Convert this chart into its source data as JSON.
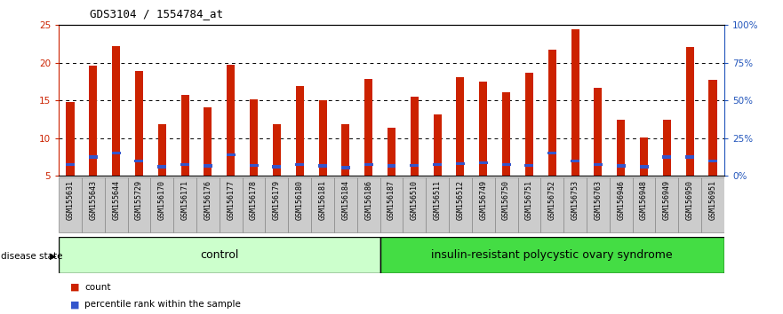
{
  "title": "GDS3104 / 1554784_at",
  "samples": [
    "GSM155631",
    "GSM155643",
    "GSM155644",
    "GSM155729",
    "GSM156170",
    "GSM156171",
    "GSM156176",
    "GSM156177",
    "GSM156178",
    "GSM156179",
    "GSM156180",
    "GSM156181",
    "GSM156184",
    "GSM156186",
    "GSM156187",
    "GSM156510",
    "GSM156511",
    "GSM156512",
    "GSM156749",
    "GSM156750",
    "GSM156751",
    "GSM156752",
    "GSM156753",
    "GSM156763",
    "GSM156946",
    "GSM156948",
    "GSM156949",
    "GSM156950",
    "GSM156951"
  ],
  "counts": [
    14.8,
    19.6,
    22.2,
    18.9,
    11.9,
    15.7,
    14.1,
    19.7,
    15.1,
    11.9,
    16.9,
    15.0,
    11.9,
    17.9,
    11.4,
    15.5,
    13.1,
    18.1,
    17.5,
    16.1,
    18.7,
    21.7,
    24.5,
    16.7,
    12.4,
    10.1,
    12.4,
    22.1,
    17.7
  ],
  "percentile_ranks": [
    6.5,
    7.5,
    8.0,
    7.0,
    6.2,
    6.5,
    6.3,
    7.8,
    6.4,
    6.2,
    6.5,
    6.3,
    6.1,
    6.5,
    6.3,
    6.4,
    6.5,
    6.6,
    6.7,
    6.5,
    6.4,
    8.0,
    7.0,
    6.5,
    6.3,
    6.2,
    7.5,
    7.5,
    7.0
  ],
  "control_count": 14,
  "disease_count": 15,
  "ylim_left": [
    5,
    25
  ],
  "yticks_left": [
    5,
    10,
    15,
    20,
    25
  ],
  "yticks_right": [
    0,
    25,
    50,
    75,
    100
  ],
  "bar_color": "#cc2200",
  "percentile_color": "#3355cc",
  "control_bg": "#ccffcc",
  "disease_bg": "#44dd44",
  "label_bg": "#cccccc",
  "title_color": "#000000",
  "left_axis_color": "#cc2200",
  "right_axis_color": "#2255bb"
}
